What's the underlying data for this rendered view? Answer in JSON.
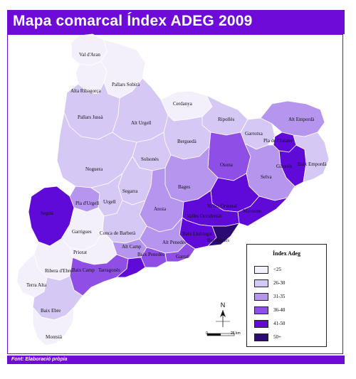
{
  "title": "Mapa comarcal Índex ADEG 2009",
  "source": "Font: Elaboració pròpia",
  "colors": {
    "accent": "#6f0bd8",
    "lt25": "#f3f0fc",
    "r26_30": "#d6c8f4",
    "r31_35": "#b595ee",
    "r36_40": "#8f4ee6",
    "r41_50": "#5f0ad8",
    "r50plus": "#2c0a73"
  },
  "legend": {
    "title": "Índex Adeg",
    "items": [
      {
        "label": "<25",
        "color": "#f3f0fc"
      },
      {
        "label": "26-30",
        "color": "#d6c8f4"
      },
      {
        "label": "31-35",
        "color": "#b595ee"
      },
      {
        "label": "36-40",
        "color": "#8f4ee6"
      },
      {
        "label": "41-50",
        "color": "#5f0ad8"
      },
      {
        "label": "50+",
        "color": "#2c0a73"
      }
    ]
  },
  "north_label": "N",
  "scale": {
    "zero": "0",
    "end": "25 km"
  },
  "comarques": [
    {
      "name": "Val d'Aran",
      "class": "<25"
    },
    {
      "name": "Pallars Sobirà",
      "class": "<25"
    },
    {
      "name": "Alta Ribagorça",
      "class": "<25"
    },
    {
      "name": "Pallars Jussà",
      "class": "26-30"
    },
    {
      "name": "Alt Urgell",
      "class": "26-30"
    },
    {
      "name": "Cerdanya",
      "class": "<25"
    },
    {
      "name": "Ripollès",
      "class": "26-30"
    },
    {
      "name": "Garrotxa",
      "class": "26-30"
    },
    {
      "name": "Alt Empordà",
      "class": "31-35"
    },
    {
      "name": "Pla de l'Estany",
      "class": "41-50"
    },
    {
      "name": "Gironès",
      "class": "41-50"
    },
    {
      "name": "Baix Empordà",
      "class": "26-30"
    },
    {
      "name": "Berguedà",
      "class": "26-30"
    },
    {
      "name": "Solsonès",
      "class": "26-30"
    },
    {
      "name": "Osona",
      "class": "36-40"
    },
    {
      "name": "Selva",
      "class": "31-35"
    },
    {
      "name": "Noguera",
      "class": "26-30"
    },
    {
      "name": "Bages",
      "class": "31-35"
    },
    {
      "name": "Segarra",
      "class": "26-30"
    },
    {
      "name": "Pla d'Urgell",
      "class": "31-35"
    },
    {
      "name": "Urgell",
      "class": "26-30"
    },
    {
      "name": "Segrià",
      "class": "41-50"
    },
    {
      "name": "Anoia",
      "class": "31-35"
    },
    {
      "name": "Vallès Oriental",
      "class": "41-50"
    },
    {
      "name": "Maresme",
      "class": "41-50"
    },
    {
      "name": "Vallès Occidental",
      "class": "41-50"
    },
    {
      "name": "Garrigues",
      "class": "<25"
    },
    {
      "name": "Conca de Barberà",
      "class": "26-30"
    },
    {
      "name": "Baix Llobregat",
      "class": "41-50"
    },
    {
      "name": "Barcelonès",
      "class": "50+"
    },
    {
      "name": "Alt Camp",
      "class": "31-35"
    },
    {
      "name": "Alt Penedès",
      "class": "31-35"
    },
    {
      "name": "Baix Penedès",
      "class": "36-40"
    },
    {
      "name": "Garraf",
      "class": "36-40"
    },
    {
      "name": "Priorat",
      "class": "<25"
    },
    {
      "name": "Baix Camp",
      "class": "36-40"
    },
    {
      "name": "Tarragonès",
      "class": "41-50"
    },
    {
      "name": "Ribera d'Ebre",
      "class": "<25"
    },
    {
      "name": "Terra Alta",
      "class": "<25"
    },
    {
      "name": "Baix Ebre",
      "class": "26-30"
    },
    {
      "name": "Montsià",
      "class": "<25"
    }
  ]
}
